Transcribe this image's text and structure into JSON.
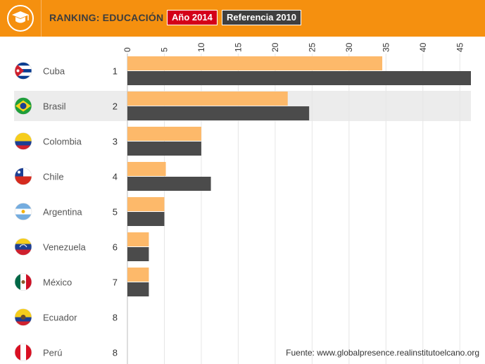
{
  "header": {
    "title": "RANKING: EDUCACIÓN",
    "icon": "graduation-cap-icon",
    "legend_2014": "Año 2014",
    "legend_2010": "Referencia 2010"
  },
  "source": "Fuente: www.globalpresence.realinstitutoelcano.org",
  "colors": {
    "header": "#f5900f",
    "bar_2014": "#fdb96a",
    "bar_2010": "#4b4b4b",
    "legend_2014": "#d40019",
    "legend_2010": "#3f3f3f",
    "highlight_row": "#ececec"
  },
  "chart_data": {
    "type": "bar",
    "orientation": "horizontal",
    "x_ticks": [
      0,
      5,
      10,
      15,
      20,
      25,
      30,
      35,
      40,
      45
    ],
    "xlim": [
      0,
      46.5
    ],
    "grid": true,
    "highlight": "Brasil",
    "categories": [
      "Cuba",
      "Brasil",
      "Colombia",
      "Chile",
      "Argentina",
      "Venezuela",
      "México",
      "Ecuador",
      "Perú"
    ],
    "ranks": [
      "1",
      "2",
      "3",
      "4",
      "5",
      "6",
      "7",
      "8",
      "8"
    ],
    "flags": [
      "cuba-flag-icon",
      "brazil-flag-icon",
      "colombia-flag-icon",
      "chile-flag-icon",
      "argentina-flag-icon",
      "venezuela-flag-icon",
      "mexico-flag-icon",
      "ecuador-flag-icon",
      "peru-flag-icon"
    ],
    "series": [
      {
        "name": "Año 2014",
        "values": [
          34.5,
          21.7,
          10.0,
          5.2,
          5.0,
          2.9,
          2.9,
          0,
          0
        ]
      },
      {
        "name": "Referencia 2010",
        "values": [
          46.5,
          24.6,
          10.0,
          11.3,
          5.0,
          2.9,
          2.9,
          0,
          0
        ]
      }
    ]
  }
}
